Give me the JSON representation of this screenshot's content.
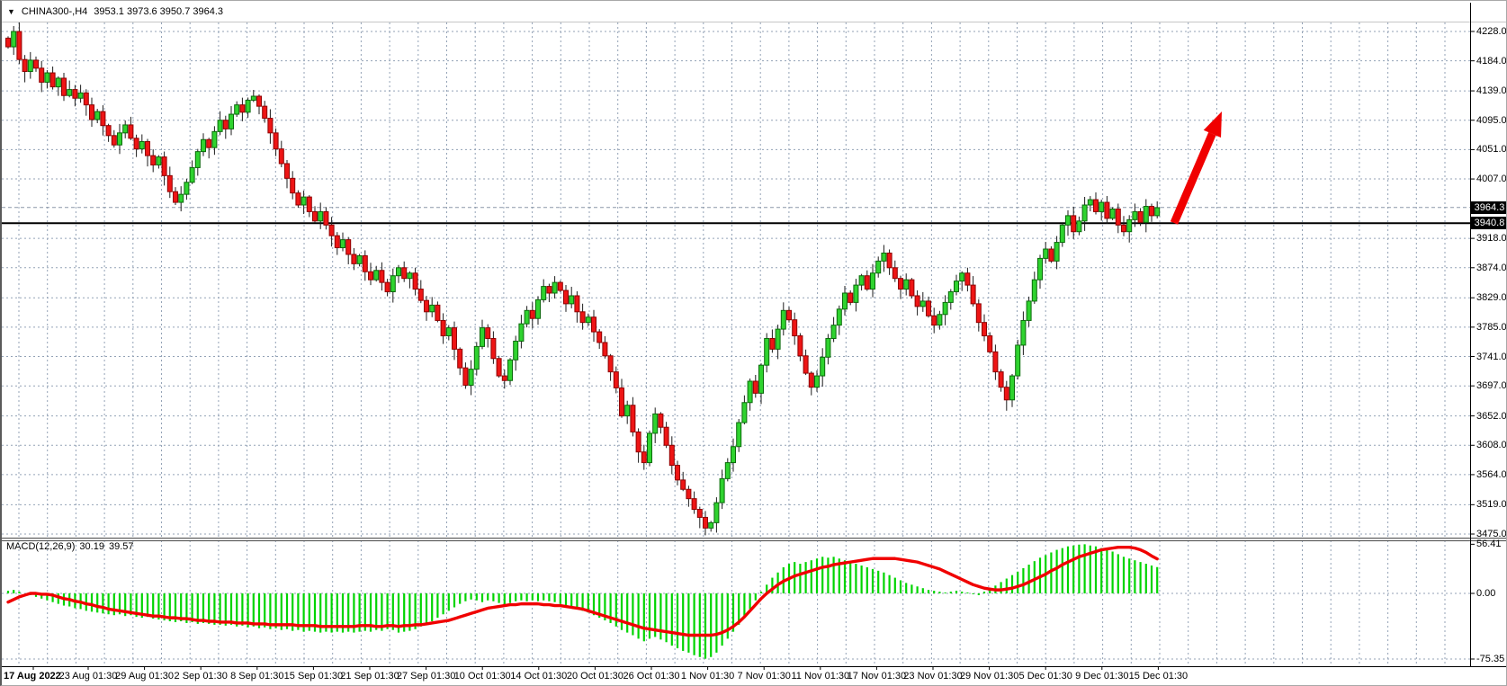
{
  "header": {
    "dropdown_icon": "▼",
    "symbol_period": "CHINA300-,H4",
    "ohlc_text": "3953.1 3973.6 3950.7 3964.3"
  },
  "indicator_panel": {
    "label": "MACD(12,26,9)",
    "macd_value": "30.19",
    "signal_value": "39.57"
  },
  "price_scale": {
    "ticks": [
      "4228.0",
      "4184.0",
      "4139.0",
      "4095.0",
      "4051.0",
      "4007.0",
      "3918.0",
      "3874.0",
      "3829.0",
      "3785.0",
      "3741.0",
      "3697.0",
      "3652.0",
      "3608.0",
      "3564.0",
      "3519.0",
      "3475.0"
    ],
    "tick_values": [
      4228.0,
      4184.0,
      4139.0,
      4095.0,
      4051.0,
      4007.0,
      3918.0,
      3874.0,
      3829.0,
      3785.0,
      3741.0,
      3697.0,
      3652.0,
      3608.0,
      3564.0,
      3519.0,
      3475.0
    ],
    "bid_tag": "3964.3",
    "hline_tag": "3940.8",
    "macd_ticks": [
      "56.41",
      "0.00",
      "-75.35"
    ],
    "macd_tick_values": [
      56.41,
      0.0,
      -75.35
    ]
  },
  "time_scale": {
    "labels": [
      "17 Aug 2022",
      "23 Aug 01:30",
      "29 Aug 01:30",
      "2 Sep 01:30",
      "8 Sep 01:30",
      "15 Sep 01:30",
      "21 Sep 01:30",
      "27 Sep 01:30",
      "10 Oct 01:30",
      "14 Oct 01:30",
      "20 Oct 01:30",
      "26 Oct 01:30",
      "1 Nov 01:30",
      "7 Nov 01:30",
      "11 Nov 01:30",
      "17 Nov 01:30",
      "23 Nov 01:30",
      "29 Nov 01:30",
      "5 Dec 01:30",
      "9 Dec 01:30",
      "15 Dec 01:30"
    ]
  },
  "chart_data": {
    "type": "candlestick",
    "title": "CHINA300- H4",
    "current_bar": {
      "open": 3953.1,
      "high": 3973.6,
      "low": 3950.7,
      "close": 3964.3
    },
    "ylim": [
      3475.0,
      4228.0
    ],
    "bid_line": 3964.3,
    "hline": 3940.8,
    "first_open": 4218,
    "closes": [
      4205,
      4228,
      4186,
      4168,
      4185,
      4173,
      4152,
      4166,
      4145,
      4158,
      4132,
      4141,
      4128,
      4136,
      4118,
      4096,
      4108,
      4087,
      4072,
      4058,
      4076,
      4088,
      4068,
      4052,
      4063,
      4042,
      4028,
      4040,
      4012,
      3988,
      3972,
      3984,
      4002,
      4024,
      4048,
      4066,
      4054,
      4078,
      4095,
      4082,
      4104,
      4118,
      4107,
      4125,
      4131,
      4116,
      4098,
      4076,
      4052,
      4030,
      4008,
      3986,
      3968,
      3980,
      3958,
      3944,
      3958,
      3938,
      3922,
      3904,
      3916,
      3894,
      3880,
      3892,
      3868,
      3856,
      3870,
      3852,
      3838,
      3862,
      3874,
      3858,
      3866,
      3842,
      3825,
      3808,
      3818,
      3795,
      3772,
      3784,
      3752,
      3724,
      3698,
      3722,
      3756,
      3784,
      3768,
      3738,
      3712,
      3705,
      3736,
      3764,
      3790,
      3810,
      3798,
      3826,
      3846,
      3836,
      3852,
      3840,
      3820,
      3832,
      3808,
      3792,
      3800,
      3778,
      3762,
      3742,
      3718,
      3694,
      3652,
      3668,
      3628,
      3598,
      3582,
      3626,
      3655,
      3635,
      3608,
      3578,
      3556,
      3542,
      3528,
      3512,
      3500,
      3484,
      3492,
      3522,
      3558,
      3582,
      3606,
      3642,
      3672,
      3704,
      3686,
      3728,
      3768,
      3752,
      3782,
      3810,
      3796,
      3772,
      3742,
      3716,
      3695,
      3712,
      3740,
      3768,
      3788,
      3812,
      3836,
      3822,
      3848,
      3862,
      3842,
      3866,
      3884,
      3896,
      3874,
      3858,
      3842,
      3856,
      3832,
      3816,
      3824,
      3802,
      3788,
      3804,
      3822,
      3838,
      3854,
      3866,
      3848,
      3820,
      3792,
      3772,
      3748,
      3718,
      3695,
      3676,
      3712,
      3758,
      3795,
      3824,
      3856,
      3888,
      3902,
      3884,
      3912,
      3938,
      3952,
      3928,
      3944,
      3968,
      3976,
      3958,
      3972,
      3948,
      3962,
      3938,
      3928,
      3946,
      3958,
      3942,
      3966,
      3952,
      3964
    ],
    "macd": {
      "label": "MACD(12,26,9)",
      "ylim": [
        -75.35,
        56.41
      ],
      "current": {
        "macd": 30.19,
        "signal": 39.57
      },
      "histogram": [
        3,
        4,
        2,
        0,
        -2,
        -4,
        -6,
        -8,
        -10,
        -12,
        -14,
        -15,
        -17,
        -18,
        -20,
        -21,
        -22,
        -23,
        -24,
        -25,
        -24,
        -26,
        -25,
        -27,
        -28,
        -27,
        -29,
        -30,
        -31,
        -32,
        -33,
        -32,
        -34,
        -33,
        -35,
        -34,
        -35,
        -36,
        -36,
        -37,
        -36,
        -38,
        -37,
        -39,
        -38,
        -40,
        -39,
        -41,
        -40,
        -42,
        -41,
        -43,
        -42,
        -44,
        -43,
        -44,
        -45,
        -44,
        -45,
        -44,
        -45,
        -44,
        -45,
        -44,
        -43,
        -44,
        -42,
        -43,
        -41,
        -42,
        -45,
        -44,
        -43,
        -41,
        -38,
        -35,
        -32,
        -28,
        -24,
        -20,
        -16,
        -12,
        -9,
        -7,
        -8,
        -10,
        -8,
        -9,
        -11,
        -13,
        -11,
        -9,
        -8,
        -9,
        -8,
        -9,
        -8,
        -9,
        -10,
        -12,
        -14,
        -16,
        -18,
        -20,
        -22,
        -25,
        -28,
        -31,
        -34,
        -38,
        -42,
        -45,
        -48,
        -52,
        -55,
        -52,
        -50,
        -53,
        -56,
        -60,
        -63,
        -66,
        -68,
        -71,
        -73,
        -75,
        -73,
        -68,
        -60,
        -52,
        -44,
        -36,
        -28,
        -18,
        -8,
        2,
        10,
        18,
        24,
        30,
        34,
        36,
        34,
        36,
        38,
        40,
        42,
        41,
        42,
        40,
        38,
        36,
        34,
        32,
        30,
        28,
        26,
        24,
        21,
        18,
        15,
        12,
        10,
        8,
        6,
        4,
        3,
        2,
        1,
        2,
        3,
        2,
        1,
        -1,
        -2,
        2,
        5,
        9,
        13,
        17,
        21,
        25,
        29,
        33,
        37,
        41,
        44,
        47,
        50,
        52,
        54,
        55,
        56,
        56.4,
        55,
        54,
        52,
        50,
        48,
        45,
        42,
        40,
        38,
        36,
        34,
        32,
        30.2
      ],
      "signal": [
        -10,
        -7,
        -4,
        -2,
        0,
        0,
        -1,
        -1,
        -2,
        -4,
        -6,
        -7,
        -9,
        -10,
        -12,
        -13,
        -15,
        -16,
        -18,
        -19,
        -20,
        -21,
        -22,
        -23,
        -24,
        -25,
        -26,
        -26,
        -27,
        -28,
        -28,
        -29,
        -29,
        -30,
        -31,
        -31,
        -32,
        -32,
        -33,
        -33,
        -33,
        -34,
        -34,
        -34,
        -35,
        -35,
        -35,
        -36,
        -36,
        -36,
        -36,
        -36,
        -37,
        -37,
        -37,
        -37,
        -38,
        -38,
        -38,
        -38,
        -38,
        -38,
        -38,
        -37,
        -37,
        -37,
        -38,
        -38,
        -37,
        -37,
        -38,
        -37,
        -37,
        -36,
        -36,
        -35,
        -34,
        -33,
        -32,
        -31,
        -29,
        -27,
        -25,
        -23,
        -21,
        -19,
        -17,
        -16,
        -15,
        -14,
        -13,
        -13,
        -12,
        -12,
        -12,
        -12,
        -13,
        -13,
        -14,
        -14,
        -15,
        -16,
        -17,
        -18,
        -20,
        -22,
        -24,
        -26,
        -28,
        -30,
        -32,
        -34,
        -36,
        -38,
        -40,
        -41,
        -42,
        -43,
        -44,
        -45,
        -46,
        -47,
        -48,
        -48,
        -48,
        -48,
        -48,
        -47,
        -45,
        -42,
        -38,
        -33,
        -27,
        -20,
        -13,
        -6,
        0,
        5,
        10,
        14,
        17,
        20,
        22,
        24,
        26,
        28,
        30,
        31,
        33,
        34,
        35,
        36,
        37,
        38,
        39,
        40,
        40,
        40,
        40,
        40,
        39,
        38,
        37,
        36,
        34,
        32,
        30,
        28,
        25,
        22,
        19,
        16,
        13,
        10,
        8,
        6,
        5,
        4,
        4,
        5,
        6,
        8,
        10,
        13,
        16,
        19,
        22,
        26,
        29,
        33,
        36,
        39,
        42,
        44,
        46,
        48,
        50,
        51,
        52,
        53,
        53,
        53,
        52,
        50,
        47,
        43,
        39.6
      ]
    },
    "arrow": {
      "from": [
        1303,
        247
      ],
      "to": [
        1356,
        123
      ]
    },
    "colors": {
      "up_fill": "#2fd32f",
      "up_border": "#0a6a0a",
      "down_fill": "#ee1515",
      "down_border": "#8f0000",
      "wick": "#1d1d1d",
      "grid": "#93a2b6",
      "macd_hist": "#00d400",
      "macd_signal": "#f00000",
      "arrow": "#f00000",
      "hline": "#000000",
      "axis": "#000000"
    }
  }
}
